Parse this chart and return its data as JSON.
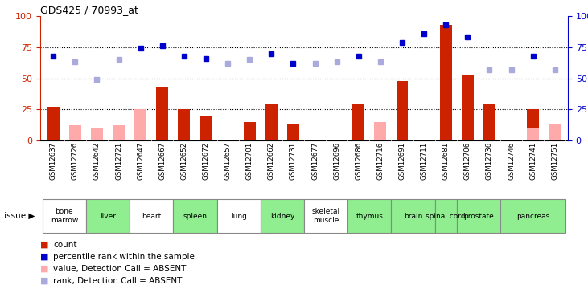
{
  "title": "GDS425 / 70993_at",
  "samples": [
    "GSM12637",
    "GSM12726",
    "GSM12642",
    "GSM12721",
    "GSM12647",
    "GSM12667",
    "GSM12652",
    "GSM12672",
    "GSM12657",
    "GSM12701",
    "GSM12662",
    "GSM12731",
    "GSM12677",
    "GSM12696",
    "GSM12686",
    "GSM12716",
    "GSM12691",
    "GSM12711",
    "GSM12681",
    "GSM12706",
    "GSM12736",
    "GSM12746",
    "GSM12741",
    "GSM12751"
  ],
  "tissue_groups": [
    {
      "name": "bone\nmarrow",
      "indices": [
        0,
        1
      ],
      "color": "#ffffff"
    },
    {
      "name": "liver",
      "indices": [
        2,
        3
      ],
      "color": "#90ee90"
    },
    {
      "name": "heart",
      "indices": [
        4,
        5
      ],
      "color": "#ffffff"
    },
    {
      "name": "spleen",
      "indices": [
        6,
        7
      ],
      "color": "#90ee90"
    },
    {
      "name": "lung",
      "indices": [
        8,
        9
      ],
      "color": "#ffffff"
    },
    {
      "name": "kidney",
      "indices": [
        10,
        11
      ],
      "color": "#90ee90"
    },
    {
      "name": "skeletal\nmuscle",
      "indices": [
        12,
        13
      ],
      "color": "#ffffff"
    },
    {
      "name": "thymus",
      "indices": [
        14,
        15
      ],
      "color": "#90ee90"
    },
    {
      "name": "brain",
      "indices": [
        16,
        17
      ],
      "color": "#90ee90"
    },
    {
      "name": "spinal cord",
      "indices": [
        18
      ],
      "color": "#90ee90"
    },
    {
      "name": "prostate",
      "indices": [
        19,
        20
      ],
      "color": "#90ee90"
    },
    {
      "name": "pancreas",
      "indices": [
        21,
        22,
        23
      ],
      "color": "#90ee90"
    }
  ],
  "bar_values": [
    27,
    null,
    null,
    null,
    null,
    43,
    25,
    20,
    null,
    15,
    30,
    13,
    null,
    null,
    30,
    null,
    48,
    null,
    93,
    53,
    30,
    null,
    25,
    null
  ],
  "bar_absent_values": [
    null,
    12,
    10,
    12,
    25,
    null,
    null,
    null,
    null,
    null,
    null,
    null,
    null,
    null,
    null,
    15,
    null,
    null,
    null,
    null,
    null,
    null,
    10,
    13
  ],
  "rank_values": [
    68,
    null,
    null,
    null,
    74,
    76,
    68,
    66,
    null,
    null,
    70,
    62,
    null,
    null,
    68,
    null,
    79,
    86,
    93,
    83,
    null,
    null,
    68,
    null
  ],
  "rank_absent_values": [
    null,
    63,
    49,
    65,
    null,
    null,
    null,
    null,
    62,
    65,
    null,
    null,
    62,
    63,
    null,
    63,
    null,
    null,
    null,
    null,
    57,
    57,
    null,
    57
  ],
  "bar_color": "#cc2200",
  "bar_absent_color": "#ffaaaa",
  "rank_color": "#0000cc",
  "rank_absent_color": "#aaaadd",
  "ylim": [
    0,
    100
  ],
  "yticks": [
    0,
    25,
    50,
    75,
    100
  ],
  "hlines": [
    25,
    50,
    75
  ],
  "xtick_bg": "#d0d0d0",
  "tissue_border": "#888888",
  "legend_items": [
    {
      "color": "#cc2200",
      "label": "count"
    },
    {
      "color": "#0000cc",
      "label": "percentile rank within the sample"
    },
    {
      "color": "#ffaaaa",
      "label": "value, Detection Call = ABSENT"
    },
    {
      "color": "#aaaadd",
      "label": "rank, Detection Call = ABSENT"
    }
  ]
}
